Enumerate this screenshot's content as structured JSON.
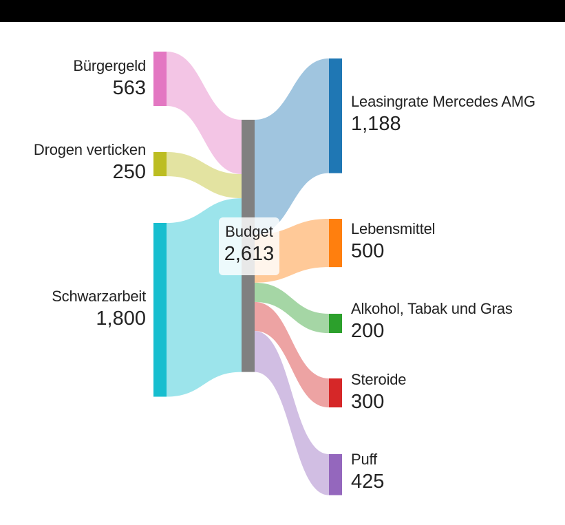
{
  "chart_data": {
    "type": "sankey",
    "center": {
      "name": "Budget",
      "value": "2,613",
      "color": "#808080"
    },
    "sources": [
      {
        "name": "Bürgergeld",
        "value": 563,
        "value_label": "563",
        "node_color": "#e377c2",
        "link_color": "#f1bbe0"
      },
      {
        "name": "Drogen verticken",
        "value": 250,
        "value_label": "250",
        "node_color": "#bcbd22",
        "link_color": "#dede90"
      },
      {
        "name": "Schwarzarbeit",
        "value": 1800,
        "value_label": "1,800",
        "node_color": "#17becf",
        "link_color": "#8bdfe7"
      }
    ],
    "targets": [
      {
        "name": "Leasingrate Mercedes AMG",
        "value": 1188,
        "value_label": "1,188",
        "node_color": "#1f77b4",
        "link_color": "#8fbbd9"
      },
      {
        "name": "Lebensmittel",
        "value": 500,
        "value_label": "500",
        "node_color": "#ff7f0e",
        "link_color": "#ffbf86"
      },
      {
        "name": "Alkohol, Tabak und Gras",
        "value": 200,
        "value_label": "200",
        "node_color": "#2ca02c",
        "link_color": "#95cf95"
      },
      {
        "name": "Steroide",
        "value": 300,
        "value_label": "300",
        "node_color": "#d62728",
        "link_color": "#ea9393"
      },
      {
        "name": "Puff",
        "value": 425,
        "value_label": "425",
        "node_color": "#9467bd",
        "link_color": "#c9b3de"
      }
    ]
  }
}
